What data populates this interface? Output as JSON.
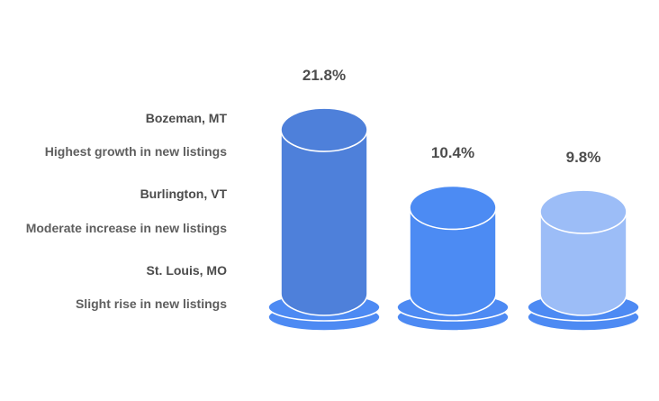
{
  "chart_data": {
    "type": "bar",
    "variant": "3d-cylinder-pictorial",
    "title": "",
    "xlabel": "",
    "ylabel": "",
    "unit": "%",
    "grid": false,
    "legend_position": "none",
    "categories": [
      "Bozeman, MT",
      "Burlington, VT",
      "St. Louis, MO"
    ],
    "values": [
      21.8,
      10.4,
      9.8
    ],
    "bars": [
      {
        "city": "Bozeman, MT",
        "description": "Highest growth in new listings",
        "value": 21.8,
        "label": "21.8%",
        "color": "#4E80DA"
      },
      {
        "city": "Burlington, VT",
        "description": "Moderate increase in new listings",
        "value": 10.4,
        "label": "10.4%",
        "color": "#4C8BF3"
      },
      {
        "city": "St. Louis, MO",
        "description": "Slight rise in new listings",
        "value": 9.8,
        "label": "9.8%",
        "color": "#9CBDF7"
      }
    ],
    "pedestal_color": "#4D8AF3",
    "outline_color": "#ffffff",
    "value_label_color": "#4d4d4d",
    "city_label_color": "#4b4b4b",
    "description_label_color": "#5e5e5e"
  }
}
